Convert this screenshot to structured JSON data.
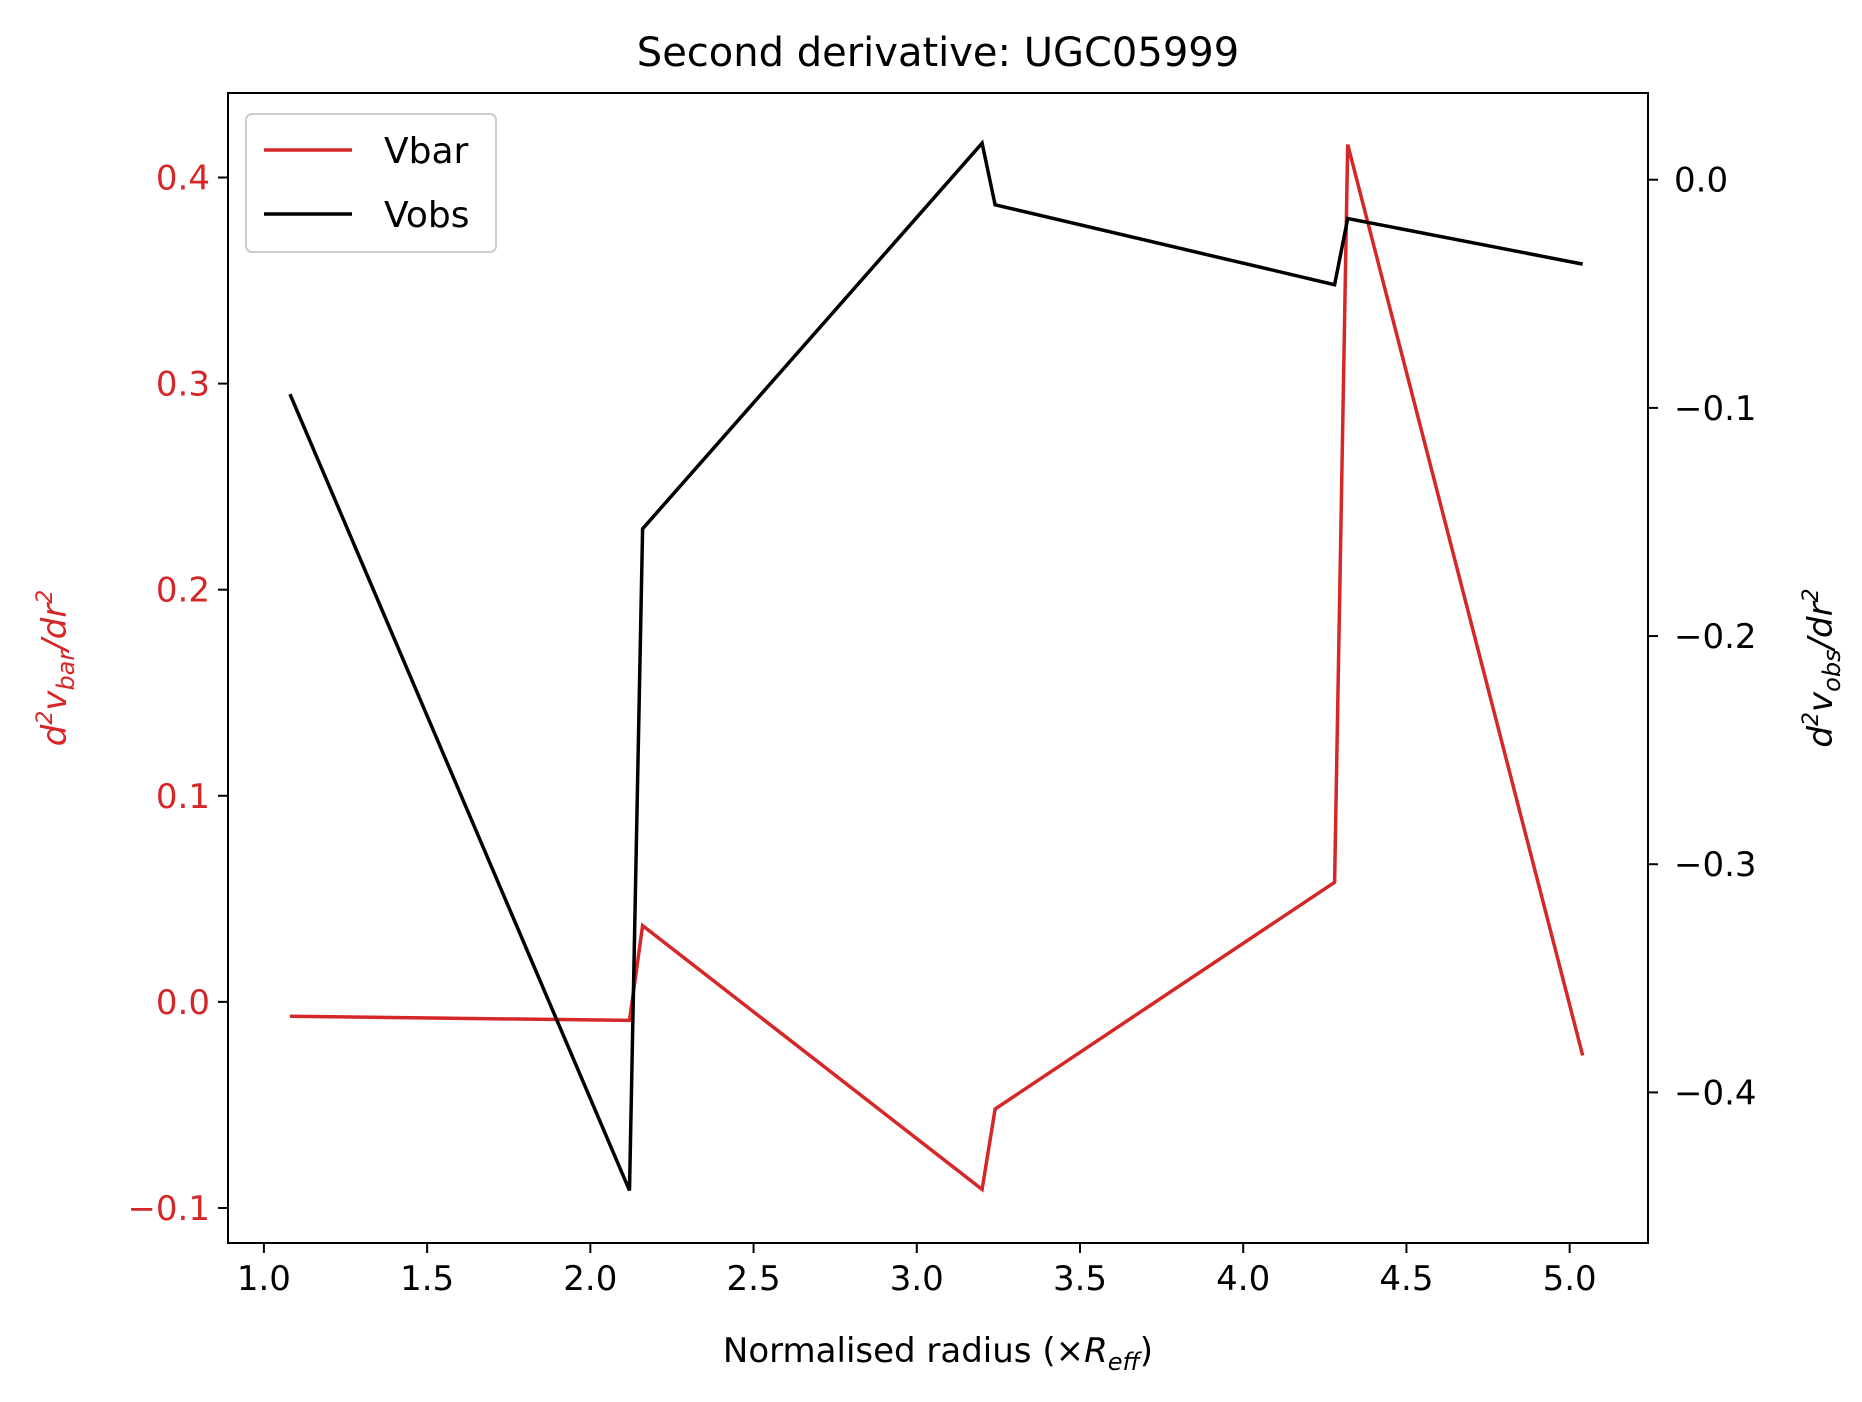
{
  "chart_data": {
    "type": "line",
    "title": "Second derivative: UGC05999",
    "xlabel": "Normalised radius (×R_eff)",
    "ylabel_left": "d²v_bar/dr²",
    "ylabel_right": "d²v_obs/dr²",
    "xlim": [
      0.89,
      5.24
    ],
    "ylim_left": [
      -0.117,
      0.441
    ],
    "ylim_right": [
      -0.466,
      0.038
    ],
    "x_ticks": [
      1.0,
      1.5,
      2.0,
      2.5,
      3.0,
      3.5,
      4.0,
      4.5,
      5.0
    ],
    "x_tick_labels": [
      "1.0",
      "1.5",
      "2.0",
      "2.5",
      "3.0",
      "3.5",
      "4.0",
      "4.5",
      "5.0"
    ],
    "y_left_ticks": [
      -0.1,
      0.0,
      0.1,
      0.2,
      0.3,
      0.4
    ],
    "y_left_tick_labels": [
      "−0.1",
      "0.0",
      "0.1",
      "0.2",
      "0.3",
      "0.4"
    ],
    "y_right_ticks": [
      -0.4,
      -0.3,
      -0.2,
      -0.1,
      0.0
    ],
    "y_right_tick_labels": [
      "−0.4",
      "−0.3",
      "−0.2",
      "−0.1",
      "0.0"
    ],
    "legend_position": "upper-left",
    "grid": false,
    "series": [
      {
        "name": "Vbar",
        "axis": "left",
        "color": "#d62728",
        "x": [
          1.08,
          2.12,
          2.16,
          3.2,
          3.24,
          4.28,
          4.32,
          5.04
        ],
        "y": [
          -0.007,
          -0.009,
          0.037,
          -0.091,
          -0.052,
          0.058,
          0.416,
          -0.026
        ]
      },
      {
        "name": "Vobs",
        "axis": "right",
        "color": "#000000",
        "x": [
          1.08,
          2.12,
          2.16,
          3.2,
          3.24,
          4.28,
          4.32,
          5.04
        ],
        "y": [
          -0.094,
          -0.443,
          -0.153,
          0.016,
          -0.011,
          -0.046,
          -0.017,
          -0.037
        ]
      }
    ]
  }
}
